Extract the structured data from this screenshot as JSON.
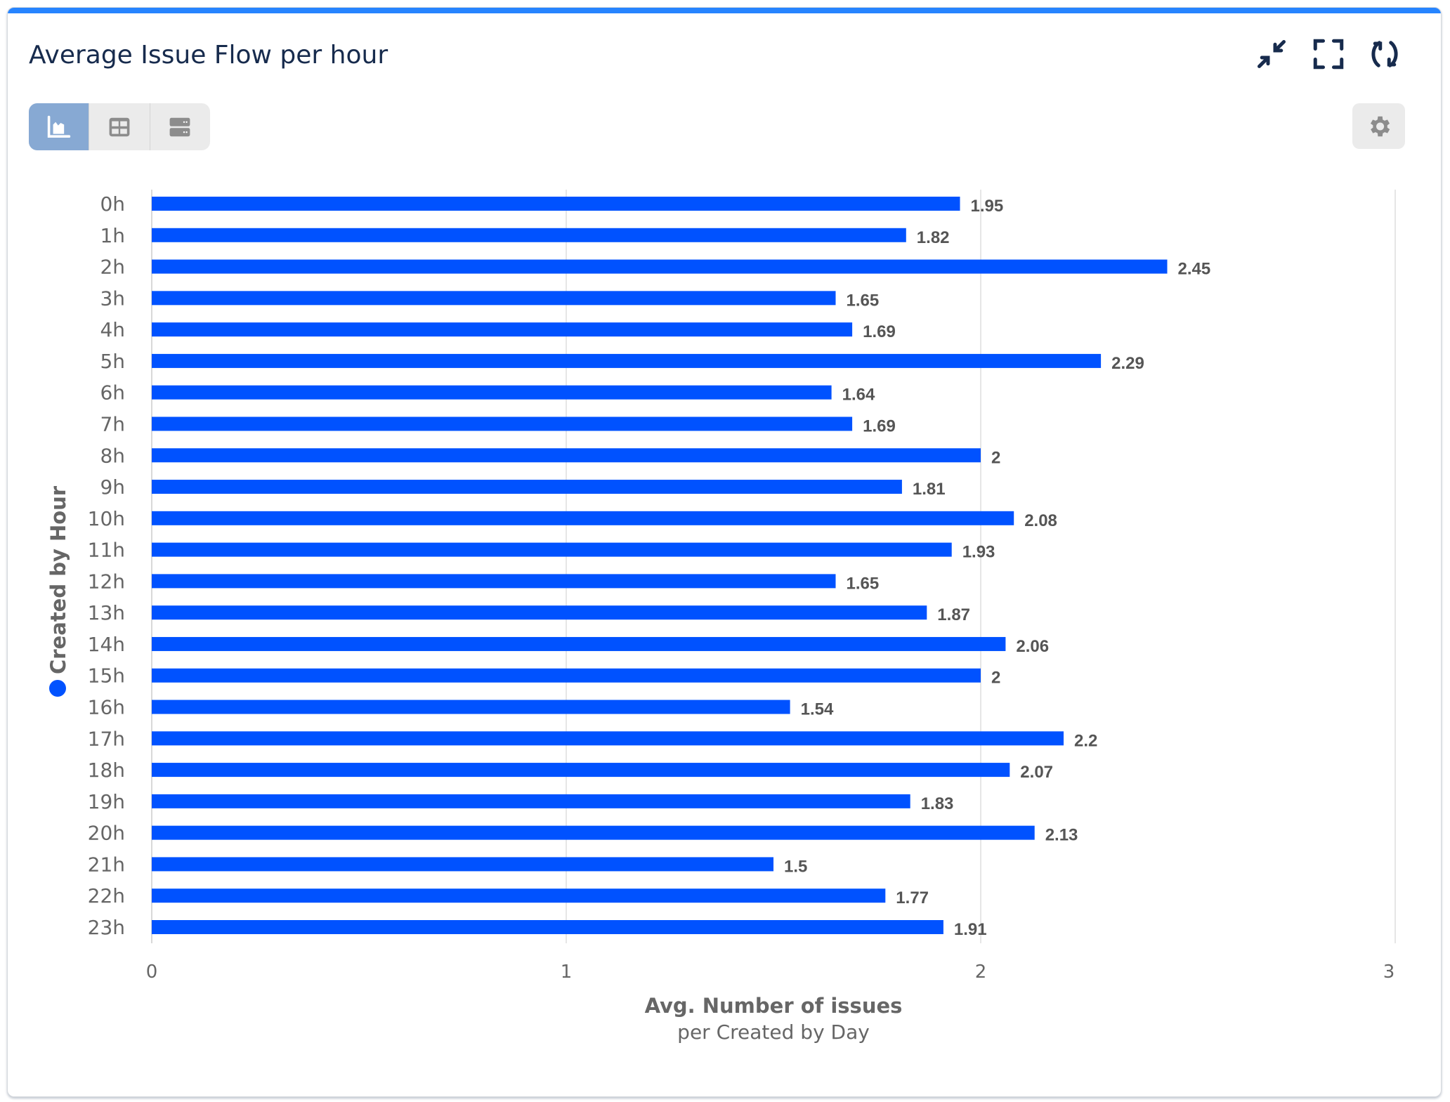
{
  "header": {
    "title": "Average Issue Flow per hour",
    "icons": [
      "collapse-icon",
      "fullscreen-icon",
      "refresh-icon"
    ]
  },
  "toolbar": {
    "views": [
      "chart-view-icon",
      "table-view-icon",
      "list-view-icon"
    ],
    "active_view": 0,
    "settings_icon": "gear-icon"
  },
  "colors": {
    "accent": "#2684ff",
    "bar": "#0052ff",
    "active_view": "#87a9d3",
    "title": "#172b4d"
  },
  "chart_data": {
    "type": "bar",
    "orientation": "horizontal",
    "categories": [
      "0h",
      "1h",
      "2h",
      "3h",
      "4h",
      "5h",
      "6h",
      "7h",
      "8h",
      "9h",
      "10h",
      "11h",
      "12h",
      "13h",
      "14h",
      "15h",
      "16h",
      "17h",
      "18h",
      "19h",
      "20h",
      "21h",
      "22h",
      "23h"
    ],
    "series": [
      {
        "name": "Created by Hour",
        "values": [
          1.95,
          1.82,
          2.45,
          1.65,
          1.69,
          2.29,
          1.64,
          1.69,
          2,
          1.81,
          2.08,
          1.93,
          1.65,
          1.87,
          2.06,
          2,
          1.54,
          2.2,
          2.07,
          1.83,
          2.13,
          1.5,
          1.77,
          1.91
        ]
      }
    ],
    "xlabel": "Avg. Number of issues",
    "xsublabel": "per Created by Day",
    "ylabel": "Created by Hour",
    "xlim": [
      0,
      3
    ],
    "xticks": [
      "0",
      "1",
      "2",
      "3"
    ],
    "grid": true,
    "legend": "left"
  }
}
